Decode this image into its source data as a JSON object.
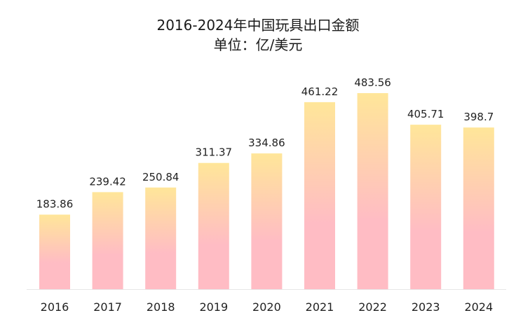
{
  "chart_data": {
    "type": "bar",
    "title": "2016-2024年中国玩具出口金额",
    "subtitle": "单位：亿/美元",
    "categories": [
      "2016",
      "2017",
      "2018",
      "2019",
      "2020",
      "2021",
      "2022",
      "2023",
      "2024"
    ],
    "values": [
      183.86,
      239.42,
      250.84,
      311.37,
      334.86,
      461.22,
      483.56,
      405.71,
      398.7
    ],
    "value_labels": [
      "183.86",
      "239.42",
      "250.84",
      "311.37",
      "334.86",
      "461.22",
      "483.56",
      "405.71",
      "398.7"
    ],
    "ylim": [
      0,
      483.56
    ],
    "grid": false,
    "legend": "none",
    "colors": {
      "bar_top": "#ffe699",
      "bar_bottom": "#ffbcc4",
      "baseline": "#e6e6e6"
    }
  }
}
